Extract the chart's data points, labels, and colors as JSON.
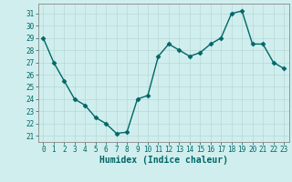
{
  "x": [
    0,
    1,
    2,
    3,
    4,
    5,
    6,
    7,
    8,
    9,
    10,
    11,
    12,
    13,
    14,
    15,
    16,
    17,
    18,
    19,
    20,
    21,
    22,
    23
  ],
  "y": [
    29,
    27,
    25.5,
    24,
    23.5,
    22.5,
    22,
    21.2,
    21.3,
    24,
    24.3,
    27.5,
    28.5,
    28,
    27.5,
    27.8,
    28.5,
    29,
    31,
    31.2,
    28.5,
    28.5,
    27,
    26.5
  ],
  "line_color": "#006666",
  "marker": "D",
  "marker_size": 2.5,
  "bg_color": "#d0eeee",
  "grid_color": "#b8d8d8",
  "xlabel": "Humidex (Indice chaleur)",
  "ylabel_ticks": [
    21,
    22,
    23,
    24,
    25,
    26,
    27,
    28,
    29,
    30,
    31
  ],
  "ylim": [
    20.5,
    31.8
  ],
  "xlim": [
    -0.5,
    23.5
  ],
  "xticks": [
    0,
    1,
    2,
    3,
    4,
    5,
    6,
    7,
    8,
    9,
    10,
    11,
    12,
    13,
    14,
    15,
    16,
    17,
    18,
    19,
    20,
    21,
    22,
    23
  ],
  "tick_fontsize": 5.5,
  "label_fontsize": 7,
  "line_width": 1.0
}
